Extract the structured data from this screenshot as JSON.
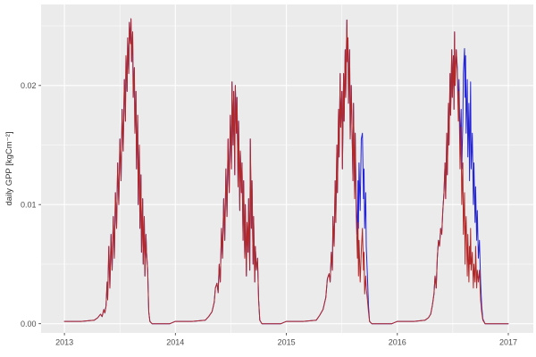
{
  "figure": {
    "background": "#FFFFFF",
    "panel_background": "#EBEBEB",
    "grid_major_color": "#FFFFFF",
    "grid_minor_color": "#FFFFFF",
    "tick_mark_color": "#333333",
    "axis_text_color": "#4D4D4D",
    "axis_title_color": "#333333"
  },
  "axes": {
    "y_label": "daily GPP [kgCm⁻²]",
    "x_label": "",
    "x_tick_labels": [
      "2013",
      "2014",
      "2015",
      "2016",
      "2017"
    ],
    "x_tick_values": [
      2013,
      2014,
      2015,
      2016,
      2017
    ],
    "x_minor_values": [
      2013.5,
      2014.5,
      2015.5,
      2016.5
    ],
    "y_tick_labels": [
      "0.00",
      "0.01",
      "0.02"
    ],
    "y_tick_values": [
      0.0,
      0.01,
      0.02
    ],
    "y_minor_values": [
      0.005,
      0.015,
      0.025
    ],
    "x_range": [
      2012.79,
      2017.225
    ],
    "y_range": [
      -0.00077,
      0.0268
    ]
  },
  "chart_data": {
    "type": "line",
    "title": "",
    "xlabel": "",
    "ylabel": "daily GPP [kgCm⁻²]",
    "x_unit": "decimal year",
    "xlim": [
      2013.0,
      2017.0
    ],
    "ylim_ticks": [
      0.0,
      0.02
    ],
    "grid": true,
    "legend": "none",
    "series_meta": [
      {
        "id": "blue_series",
        "color": "#2424D8",
        "draw_order": 1
      },
      {
        "id": "red_series",
        "color": "#B22828",
        "draw_order": 2
      }
    ],
    "note_blue_null": "null in a blue array means the blue series coincides with the red series at that point",
    "years": [
      {
        "year": 2013,
        "f": [
          0.0,
          0.15,
          0.27,
          0.3,
          0.325,
          0.34,
          0.355,
          0.365,
          0.375,
          0.385,
          0.39,
          0.4,
          0.41,
          0.42,
          0.43,
          0.44,
          0.45,
          0.46,
          0.47,
          0.48,
          0.49,
          0.5,
          0.51,
          0.52,
          0.53,
          0.54,
          0.55,
          0.555,
          0.565,
          0.57,
          0.58,
          0.585,
          0.595,
          0.6,
          0.605,
          0.615,
          0.62,
          0.63,
          0.635,
          0.645,
          0.65,
          0.66,
          0.665,
          0.675,
          0.68,
          0.69,
          0.695,
          0.705,
          0.71,
          0.72,
          0.725,
          0.735,
          0.74,
          0.75,
          0.76,
          0.77,
          0.79,
          0.85,
          0.95
        ],
        "red": [
          0.0002,
          0.0002,
          0.0003,
          0.0005,
          0.0008,
          0.0006,
          0.0012,
          0.0009,
          0.0015,
          0.0035,
          0.002,
          0.0065,
          0.003,
          0.0075,
          0.0045,
          0.009,
          0.0055,
          0.011,
          0.008,
          0.0135,
          0.01,
          0.0155,
          0.012,
          0.018,
          0.0145,
          0.0205,
          0.017,
          0.0225,
          0.0195,
          0.024,
          0.021,
          0.0253,
          0.0235,
          0.0256,
          0.022,
          0.0245,
          0.019,
          0.0215,
          0.016,
          0.0195,
          0.013,
          0.0175,
          0.01,
          0.015,
          0.008,
          0.0125,
          0.006,
          0.0105,
          0.005,
          0.009,
          0.004,
          0.0075,
          0.006,
          0.0045,
          0.001,
          0.0002,
          0.0,
          0.0,
          0.0
        ],
        "blue": [
          null,
          null,
          null,
          null,
          null,
          null,
          null,
          null,
          null,
          null,
          null,
          null,
          null,
          null,
          null,
          null,
          null,
          null,
          null,
          null,
          null,
          null,
          null,
          null,
          null,
          null,
          null,
          null,
          null,
          null,
          null,
          null,
          null,
          null,
          null,
          null,
          null,
          null,
          null,
          null,
          null,
          null,
          null,
          null,
          null,
          null,
          null,
          null,
          null,
          null,
          null,
          null,
          null,
          null,
          null,
          null,
          null,
          null,
          null
        ]
      },
      {
        "year": 2014,
        "f": [
          0.0,
          0.15,
          0.27,
          0.3,
          0.33,
          0.35,
          0.36,
          0.375,
          0.385,
          0.395,
          0.405,
          0.415,
          0.425,
          0.435,
          0.445,
          0.455,
          0.465,
          0.475,
          0.485,
          0.495,
          0.505,
          0.51,
          0.52,
          0.525,
          0.535,
          0.54,
          0.55,
          0.555,
          0.565,
          0.57,
          0.58,
          0.585,
          0.595,
          0.6,
          0.61,
          0.615,
          0.625,
          0.63,
          0.64,
          0.645,
          0.655,
          0.66,
          0.67,
          0.675,
          0.685,
          0.69,
          0.7,
          0.705,
          0.715,
          0.72,
          0.73,
          0.74,
          0.75,
          0.76,
          0.78,
          0.85,
          0.95
        ],
        "red": [
          0.0002,
          0.0002,
          0.0003,
          0.0006,
          0.001,
          0.0018,
          0.003,
          0.0034,
          0.0026,
          0.005,
          0.0035,
          0.008,
          0.0055,
          0.0105,
          0.007,
          0.013,
          0.009,
          0.0155,
          0.011,
          0.0175,
          0.013,
          0.0203,
          0.015,
          0.0195,
          0.0125,
          0.02,
          0.016,
          0.019,
          0.0115,
          0.017,
          0.0095,
          0.0145,
          0.011,
          0.0135,
          0.007,
          0.012,
          0.0055,
          0.01,
          0.004,
          0.0085,
          0.006,
          0.0105,
          0.0045,
          0.0155,
          0.008,
          0.012,
          0.005,
          0.009,
          0.0035,
          0.0065,
          0.0045,
          0.0055,
          0.002,
          0.0003,
          0.0,
          0.0,
          0.0
        ],
        "blue": [
          null,
          null,
          null,
          null,
          null,
          null,
          null,
          null,
          null,
          null,
          null,
          null,
          null,
          null,
          null,
          null,
          null,
          null,
          null,
          null,
          null,
          null,
          null,
          null,
          null,
          null,
          null,
          null,
          null,
          null,
          null,
          null,
          null,
          null,
          null,
          null,
          null,
          null,
          null,
          null,
          null,
          null,
          null,
          null,
          null,
          null,
          null,
          null,
          null,
          null,
          null,
          null,
          null,
          null,
          null,
          null,
          null
        ]
      },
      {
        "year": 2015,
        "f": [
          0.0,
          0.15,
          0.27,
          0.3,
          0.33,
          0.355,
          0.37,
          0.385,
          0.395,
          0.405,
          0.415,
          0.42,
          0.43,
          0.44,
          0.445,
          0.455,
          0.46,
          0.47,
          0.475,
          0.485,
          0.49,
          0.5,
          0.505,
          0.515,
          0.52,
          0.53,
          0.535,
          0.545,
          0.55,
          0.555,
          0.56,
          0.57,
          0.575,
          0.585,
          0.59,
          0.6,
          0.605,
          0.615,
          0.62,
          0.63,
          0.64,
          0.645,
          0.65,
          0.655,
          0.665,
          0.675,
          0.685,
          0.695,
          0.7,
          0.705,
          0.715,
          0.72,
          0.73,
          0.74,
          0.75,
          0.77,
          0.85,
          0.95
        ],
        "red": [
          0.0002,
          0.0002,
          0.0003,
          0.0007,
          0.0012,
          0.0022,
          0.0038,
          0.0042,
          0.0035,
          0.006,
          0.0045,
          0.009,
          0.0065,
          0.012,
          0.0085,
          0.015,
          0.011,
          0.018,
          0.014,
          0.021,
          0.0165,
          0.0195,
          0.013,
          0.021,
          0.017,
          0.023,
          0.019,
          0.0255,
          0.022,
          0.024,
          0.0185,
          0.023,
          0.0155,
          0.02,
          0.017,
          0.012,
          0.0185,
          0.0105,
          0.016,
          0.009,
          0.0055,
          0.0085,
          0.004,
          0.007,
          0.0035,
          0.006,
          0.008,
          0.0045,
          0.006,
          0.0025,
          0.004,
          0.003,
          0.002,
          0.001,
          0.0002,
          0.0,
          0.0,
          0.0
        ],
        "blue": [
          null,
          null,
          null,
          null,
          null,
          null,
          null,
          null,
          null,
          null,
          null,
          null,
          null,
          null,
          null,
          null,
          null,
          null,
          null,
          null,
          null,
          null,
          null,
          null,
          null,
          null,
          null,
          null,
          null,
          null,
          null,
          null,
          null,
          null,
          null,
          null,
          null,
          null,
          null,
          0.01,
          0.0075,
          0.012,
          0.008,
          0.0135,
          0.0095,
          0.0155,
          0.016,
          0.0105,
          0.013,
          0.008,
          0.011,
          0.0065,
          0.004,
          0.0015,
          0.0002,
          0.0,
          0.0,
          0.0
        ]
      },
      {
        "year": 2016,
        "f": [
          0.0,
          0.15,
          0.25,
          0.28,
          0.3,
          0.315,
          0.33,
          0.34,
          0.35,
          0.36,
          0.37,
          0.38,
          0.39,
          0.4,
          0.41,
          0.42,
          0.43,
          0.435,
          0.445,
          0.45,
          0.46,
          0.465,
          0.475,
          0.48,
          0.49,
          0.495,
          0.505,
          0.51,
          0.515,
          0.52,
          0.53,
          0.54,
          0.55,
          0.555,
          0.565,
          0.575,
          0.58,
          0.59,
          0.595,
          0.605,
          0.61,
          0.615,
          0.62,
          0.63,
          0.635,
          0.645,
          0.65,
          0.655,
          0.66,
          0.665,
          0.675,
          0.685,
          0.69,
          0.7,
          0.705,
          0.715,
          0.72,
          0.73,
          0.74,
          0.75,
          0.76,
          0.77,
          0.79,
          0.85,
          0.95,
          0.999
        ],
        "red": [
          0.0002,
          0.0002,
          0.0003,
          0.0005,
          0.0008,
          0.0015,
          0.0025,
          0.004,
          0.003,
          0.0055,
          0.007,
          0.0065,
          0.008,
          0.0075,
          0.0095,
          0.011,
          0.0135,
          0.0105,
          0.016,
          0.0125,
          0.0185,
          0.015,
          0.021,
          0.0175,
          0.023,
          0.019,
          0.0225,
          0.018,
          0.0245,
          0.02,
          0.023,
          0.021,
          0.017,
          0.0195,
          0.013,
          0.0165,
          0.01,
          0.0135,
          0.0075,
          0.011,
          0.005,
          0.008,
          0.009,
          0.004,
          0.0075,
          0.0035,
          0.0065,
          0.005,
          0.008,
          0.0045,
          0.006,
          0.003,
          0.005,
          0.0035,
          0.0065,
          0.003,
          0.0045,
          0.0035,
          0.0045,
          0.002,
          0.001,
          0.0003,
          0.0,
          0.0,
          0.0,
          0.0
        ],
        "blue": [
          null,
          null,
          null,
          null,
          null,
          null,
          null,
          null,
          null,
          null,
          null,
          null,
          null,
          null,
          null,
          null,
          null,
          null,
          null,
          null,
          null,
          null,
          null,
          null,
          null,
          null,
          null,
          null,
          null,
          null,
          null,
          0.0215,
          0.018,
          0.0205,
          0.015,
          0.018,
          0.013,
          0.017,
          0.021,
          0.0231,
          0.019,
          0.0225,
          0.016,
          0.0205,
          0.014,
          0.0185,
          0.012,
          0.0165,
          0.0203,
          0.013,
          0.016,
          0.01,
          0.0135,
          0.0085,
          0.0115,
          0.007,
          0.0095,
          0.0055,
          0.007,
          0.0035,
          0.0015,
          0.0004,
          0.0,
          0.0,
          0.0,
          null
        ]
      }
    ]
  }
}
